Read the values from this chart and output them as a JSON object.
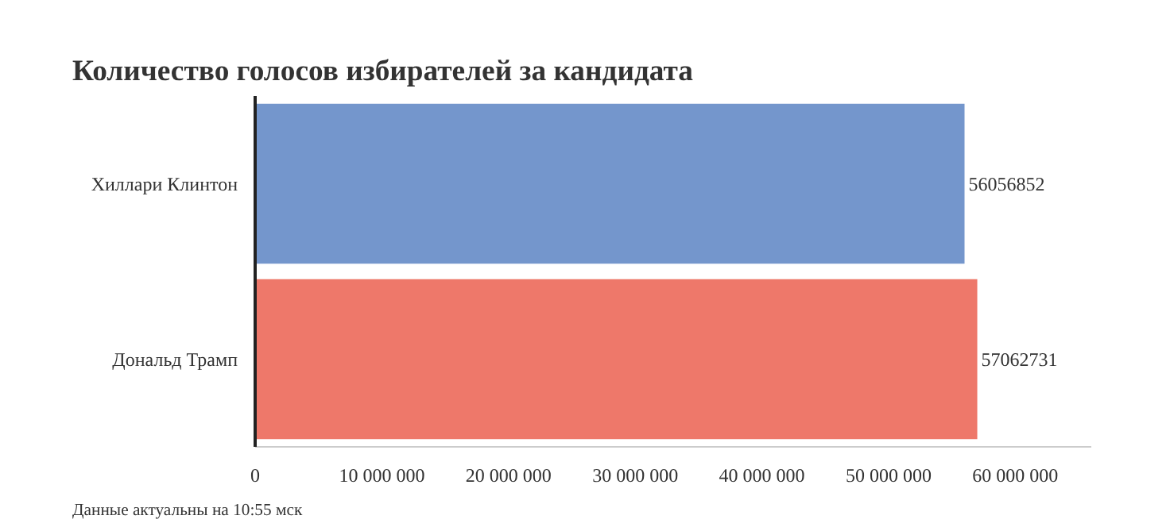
{
  "chart_data": {
    "type": "bar",
    "orientation": "horizontal",
    "title": "Количество голосов избирателей за кандидата",
    "categories": [
      "Хиллари Клинтон",
      "Дональд Трамп"
    ],
    "values": [
      56056852,
      57062731
    ],
    "colors": [
      "#7496cc",
      "#ee786a"
    ],
    "data_labels": true,
    "xlim": [
      0,
      66000000
    ],
    "xticks": [
      {
        "value": 0,
        "label": "0"
      },
      {
        "value": 10000000,
        "label": "10 000 000"
      },
      {
        "value": 20000000,
        "label": "20 000 000"
      },
      {
        "value": 30000000,
        "label": "30 000 000"
      },
      {
        "value": 40000000,
        "label": "40 000 000"
      },
      {
        "value": 50000000,
        "label": "50 000 000"
      },
      {
        "value": 60000000,
        "label": "60 000 000"
      }
    ],
    "grid": false,
    "annotations": [
      "Данные актуальны на 10:55 мск"
    ]
  }
}
